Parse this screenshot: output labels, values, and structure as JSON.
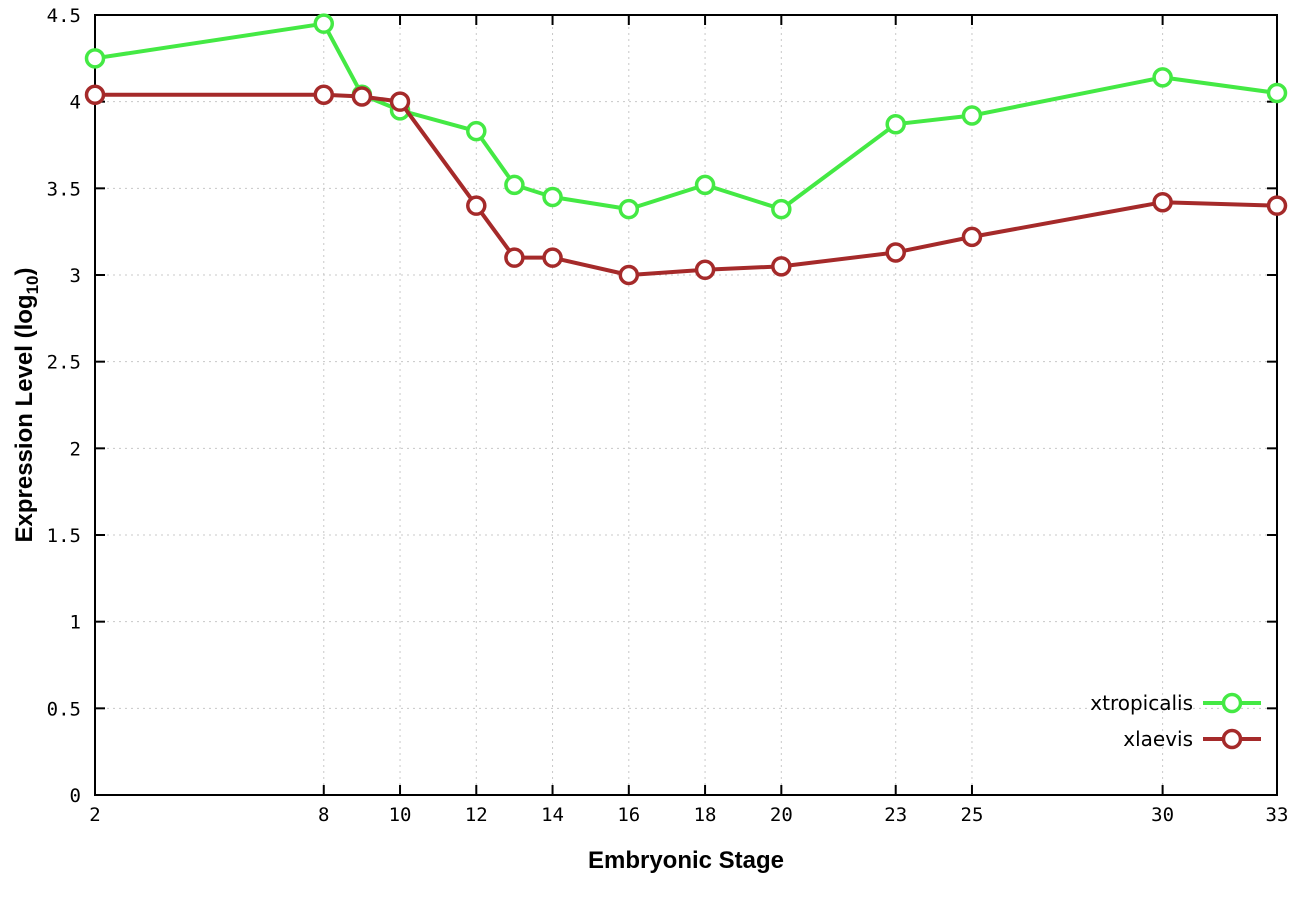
{
  "chart_data": {
    "type": "line",
    "title": "",
    "xlabel": "Embryonic Stage",
    "ylabel": "Expression Level (log10)",
    "ylabel_parts": {
      "prefix": "Expression Level (log",
      "sub": "10",
      "suffix": ")"
    },
    "x": [
      2,
      8,
      9,
      10,
      12,
      13,
      14,
      16,
      18,
      20,
      23,
      25,
      30,
      33
    ],
    "xlim": [
      2,
      33
    ],
    "ylim": [
      0,
      4.5
    ],
    "x_ticks": [
      2,
      8,
      10,
      12,
      14,
      16,
      18,
      20,
      23,
      25,
      30,
      33
    ],
    "x_tick_labels": [
      "2",
      "8",
      "10",
      "12",
      "14",
      "16",
      "18",
      "20",
      "23",
      "25",
      "30",
      "33"
    ],
    "y_ticks": [
      0,
      0.5,
      1,
      1.5,
      2,
      2.5,
      3,
      3.5,
      4,
      4.5
    ],
    "y_tick_labels": [
      "0",
      "0.5",
      "1",
      "1.5",
      "2",
      "2.5",
      "3",
      "3.5",
      "4",
      "4.5"
    ],
    "grid": true,
    "legend_position": "bottom-right",
    "series": [
      {
        "name": "xtropicalis",
        "color": "#44e944",
        "values": [
          4.25,
          4.45,
          4.04,
          3.95,
          3.83,
          3.52,
          3.45,
          3.38,
          3.52,
          3.38,
          3.87,
          3.92,
          4.14,
          4.05
        ]
      },
      {
        "name": "xlaevis",
        "color": "#a52a2a",
        "values": [
          4.04,
          4.04,
          4.03,
          4.0,
          3.4,
          3.1,
          3.1,
          3.0,
          3.03,
          3.05,
          3.13,
          3.22,
          3.42,
          3.4
        ]
      }
    ],
    "style": {
      "grid_color": "#c8c8c8",
      "axis_color": "#000000",
      "text_color": "#000000",
      "background": "#ffffff"
    }
  }
}
